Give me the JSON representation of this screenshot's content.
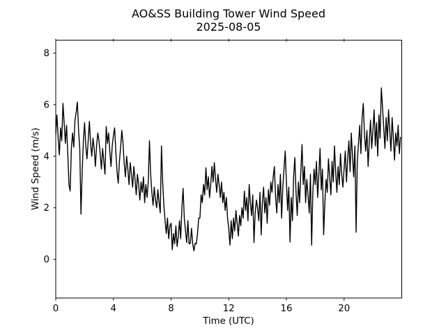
{
  "figure": {
    "background": "#ffffff"
  },
  "chart_data": {
    "type": "line",
    "title": "AO&SS Building Tower Wind Speed",
    "subtitle": "2025-08-05",
    "xlabel": "Time (UTC)",
    "ylabel": "Wind Speed (m/s)",
    "x_ticks": [
      0,
      4,
      8,
      12,
      16,
      20
    ],
    "y_ticks": [
      0,
      2,
      4,
      6,
      8
    ],
    "xlim": [
      0,
      24
    ],
    "ylim": [
      -1.5,
      8.5
    ],
    "grid": false,
    "legend_position": "none",
    "line_color": "#000000",
    "series": [
      {
        "name": "wind_speed_m_s",
        "x_start_hour": 0.0,
        "x_step_hour": 0.0833333,
        "values": [
          4.85,
          5.6,
          4.7,
          4.05,
          5.1,
          4.6,
          6.05,
          5.3,
          4.5,
          5.2,
          4.1,
          2.9,
          2.65,
          4.3,
          4.9,
          4.35,
          5.4,
          5.7,
          6.1,
          5.0,
          4.3,
          1.75,
          3.4,
          4.6,
          5.3,
          4.4,
          3.9,
          4.6,
          5.35,
          4.5,
          4.0,
          4.7,
          4.3,
          3.6,
          4.4,
          4.9,
          4.6,
          4.1,
          3.5,
          4.3,
          3.8,
          3.3,
          5.15,
          4.5,
          4.9,
          4.2,
          3.6,
          4.4,
          4.8,
          5.1,
          4.2,
          3.4,
          2.95,
          3.8,
          4.35,
          5.0,
          4.5,
          3.7,
          3.2,
          4.0,
          3.5,
          2.9,
          3.75,
          3.3,
          2.8,
          3.6,
          3.1,
          2.5,
          3.3,
          2.9,
          2.3,
          3.0,
          2.6,
          3.2,
          2.2,
          2.9,
          2.4,
          3.0,
          4.6,
          3.3,
          2.6,
          2.1,
          2.8,
          2.3,
          2.0,
          2.7,
          2.2,
          1.8,
          4.4,
          3.0,
          2.1,
          1.5,
          1.0,
          1.6,
          0.8,
          1.3,
          1.4,
          0.37,
          1.0,
          0.6,
          1.3,
          0.5,
          0.9,
          1.5,
          0.8,
          2.0,
          2.75,
          1.6,
          1.1,
          0.65,
          1.5,
          0.6,
          0.62,
          1.2,
          0.6,
          0.33,
          0.62,
          0.6,
          1.0,
          1.6,
          1.6,
          2.5,
          2.2,
          2.9,
          2.5,
          3.55,
          2.7,
          3.2,
          2.4,
          2.9,
          3.6,
          3.0,
          3.75,
          3.1,
          2.6,
          3.3,
          2.9,
          2.4,
          3.0,
          2.2,
          2.6,
          1.9,
          2.4,
          1.6,
          1.2,
          0.55,
          1.5,
          0.8,
          1.6,
          1.1,
          1.9,
          1.4,
          0.9,
          1.7,
          1.3,
          2.0,
          1.6,
          2.65,
          1.9,
          2.4,
          1.5,
          2.9,
          2.2,
          1.7,
          2.5,
          0.65,
          1.8,
          2.3,
          2.0,
          1.5,
          2.6,
          0.95,
          2.2,
          2.8,
          1.8,
          2.4,
          1.4,
          2.7,
          2.1,
          3.0,
          2.6,
          3.2,
          3.6,
          2.4,
          1.8,
          2.9,
          2.2,
          3.3,
          1.6,
          2.8,
          3.5,
          4.2,
          3.0,
          1.9,
          2.8,
          0.67,
          2.4,
          1.5,
          3.2,
          3.95,
          2.6,
          1.7,
          3.0,
          2.2,
          3.4,
          4.45,
          2.9,
          3.6,
          2.2,
          3.1,
          2.5,
          1.8,
          3.3,
          0.55,
          2.6,
          3.5,
          2.9,
          3.8,
          2.4,
          3.3,
          4.3,
          2.7,
          3.5,
          0.95,
          2.2,
          3.1,
          2.6,
          3.9,
          3.2,
          2.5,
          3.8,
          3.0,
          4.4,
          3.4,
          2.6,
          3.6,
          2.9,
          4.1,
          3.3,
          2.8,
          3.5,
          4.2,
          3.0,
          3.9,
          4.6,
          3.4,
          4.9,
          4.0,
          3.2,
          4.4,
          1.05,
          3.8,
          4.5,
          5.2,
          4.1,
          5.5,
          6.05,
          4.8,
          4.2,
          5.0,
          3.6,
          4.6,
          5.4,
          4.3,
          5.0,
          5.8,
          4.4,
          5.3,
          4.0,
          5.6,
          4.7,
          6.65,
          5.9,
          5.1,
          4.3,
          5.5,
          4.6,
          5.8,
          5.0,
          4.2,
          5.5,
          4.7,
          3.85,
          4.9,
          4.4,
          5.2,
          4.1,
          4.75
        ]
      }
    ]
  }
}
